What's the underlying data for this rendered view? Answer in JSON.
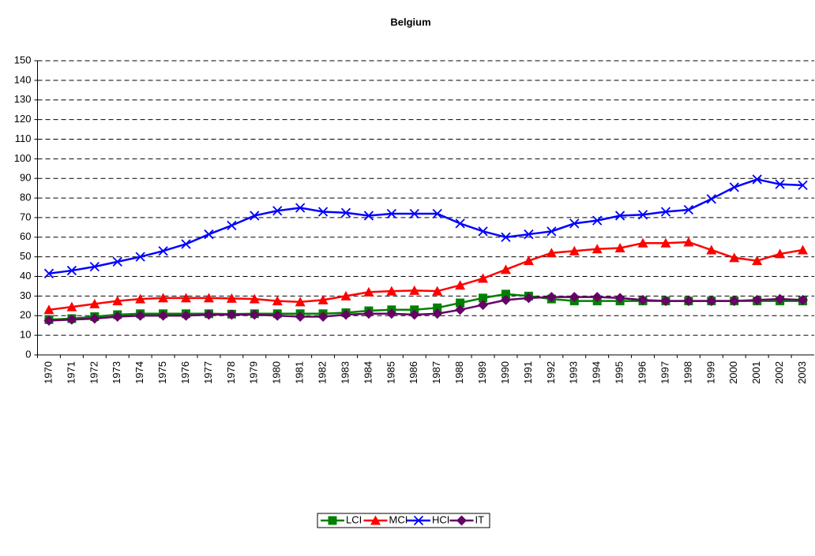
{
  "chart_data": {
    "type": "line",
    "title": "Belgium",
    "categories": [
      "1970",
      "1971",
      "1972",
      "1973",
      "1974",
      "1975",
      "1976",
      "1977",
      "1978",
      "1979",
      "1980",
      "1981",
      "1982",
      "1983",
      "1984",
      "1985",
      "1986",
      "1987",
      "1988",
      "1989",
      "1990",
      "1991",
      "1992",
      "1993",
      "1994",
      "1995",
      "1996",
      "1997",
      "1998",
      "1999",
      "2000",
      "2001",
      "2002",
      "2003"
    ],
    "series": [
      {
        "name": "LCI",
        "color": "#008000",
        "marker": "square",
        "values": [
          18,
          18.5,
          19.5,
          20.5,
          21,
          21,
          21,
          21,
          20.8,
          21,
          21,
          21,
          21,
          21.5,
          22.5,
          23,
          23,
          24,
          26.5,
          29,
          31,
          30,
          28.5,
          27.5,
          27.5,
          27.5,
          27.5,
          27.5,
          27.5,
          27.5,
          27.5,
          27.5,
          27.5,
          27.5
        ]
      },
      {
        "name": "MCI",
        "color": "#ff0000",
        "marker": "triangle",
        "values": [
          23,
          24.5,
          26,
          27.5,
          28.5,
          29,
          29,
          29,
          28.8,
          28.5,
          27.5,
          27,
          28,
          30,
          32,
          32.5,
          32.8,
          32.5,
          35.5,
          39,
          43.5,
          48,
          52,
          53,
          54,
          54.5,
          57,
          57,
          57.5,
          53.5,
          49.5,
          48,
          51.5,
          53.5
        ]
      },
      {
        "name": "HCI",
        "color": "#0000ff",
        "marker": "x",
        "values": [
          41.5,
          43,
          45,
          47.5,
          50,
          53,
          56.5,
          61.5,
          66,
          71,
          73.5,
          75,
          73,
          72.5,
          71,
          72,
          72,
          72,
          67,
          63,
          60,
          61.5,
          63,
          67,
          68.5,
          71,
          71.5,
          73,
          74,
          79.5,
          85.5,
          89.5,
          87,
          86.5
        ]
      },
      {
        "name": "IT",
        "color": "#660066",
        "marker": "diamond",
        "values": [
          17.5,
          18,
          18.5,
          19.5,
          20,
          20,
          20,
          20.5,
          20.5,
          20.5,
          20,
          19.5,
          19.5,
          20.5,
          21,
          21,
          20.5,
          21,
          23,
          25.5,
          28,
          29,
          29.5,
          29.5,
          29.5,
          29,
          28,
          27.5,
          27.5,
          27.5,
          27.5,
          28,
          28.5,
          28
        ]
      }
    ],
    "ylim": [
      0,
      150
    ],
    "yticks": [
      0,
      10,
      20,
      30,
      40,
      50,
      60,
      70,
      80,
      90,
      100,
      110,
      120,
      130,
      140,
      150
    ],
    "grid": true,
    "legend": "bottom"
  }
}
